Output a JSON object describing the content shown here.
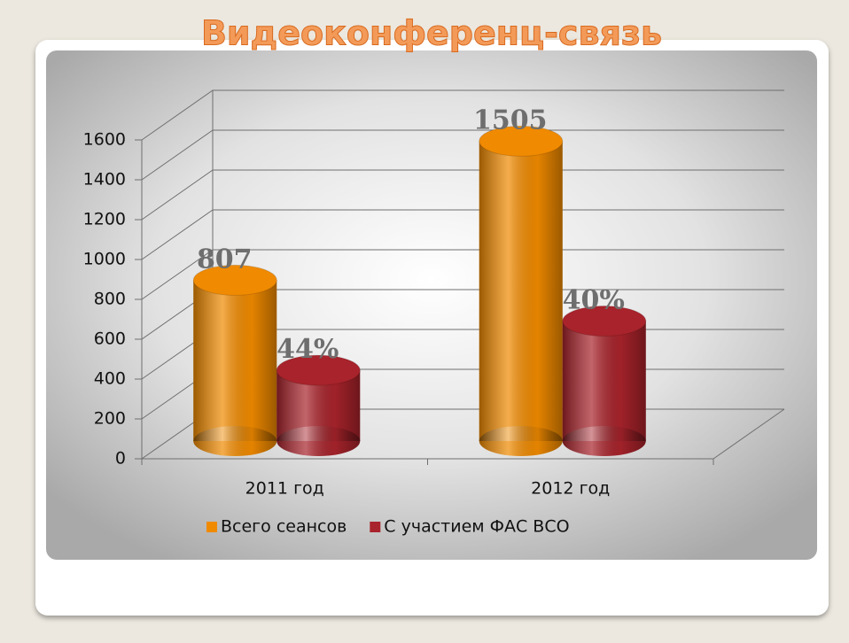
{
  "chart_data": {
    "type": "bar3d",
    "title": "Видеоконференц-связь",
    "categories": [
      "2011 год",
      "2012 год"
    ],
    "series": [
      {
        "name": "Всего сеансов",
        "color": "#f08a00",
        "values": [
          807,
          1505
        ]
      },
      {
        "name": "С участием ФАС ВСО",
        "color": "#a8232b",
        "values": [
          355,
          602
        ],
        "value_labels": [
          "44%",
          "40%"
        ]
      }
    ],
    "ylim": [
      0,
      1600
    ],
    "yticks": [
      0,
      200,
      400,
      600,
      800,
      1000,
      1200,
      1400,
      1600
    ],
    "grid": true,
    "legend": "bottom"
  }
}
